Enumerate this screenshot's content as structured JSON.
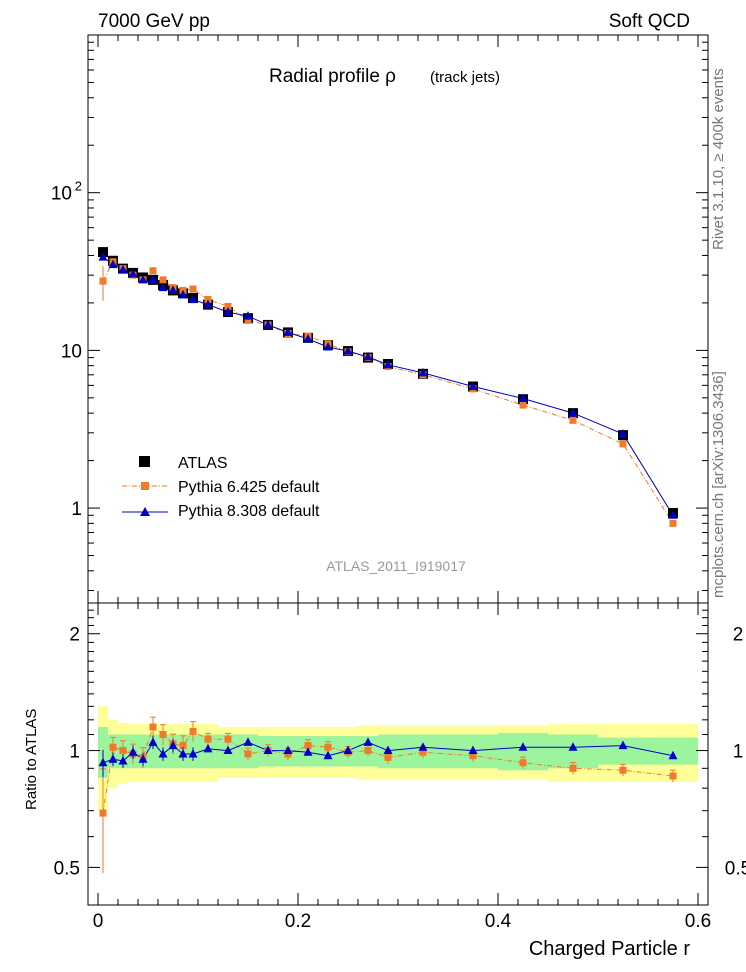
{
  "header": {
    "left": "7000 GeV pp",
    "right": "Soft QCD"
  },
  "side": {
    "rivet": "Rivet 3.1.10, ≥ 400k events",
    "mcplots": "mcplots.cern.ch [arXiv:1306.3436]"
  },
  "chart_data": {
    "type": "line",
    "title": "Radial profile  ρ",
    "title_suffix": "(track jets)",
    "watermark": "ATLAS_2011_I919017",
    "xlabel": "Charged Particle r",
    "ylabel_ratio": "Ratio to ATLAS",
    "xlim": [
      -0.01,
      0.61
    ],
    "ylim_main": [
      0.25,
      1000
    ],
    "yscale_main": "log",
    "ylim_ratio": [
      0.4,
      2.4
    ],
    "yscale_ratio": "log",
    "main_yticks": [
      {
        "v": 1,
        "label": "1"
      },
      {
        "v": 10,
        "label": "10"
      },
      {
        "v": 100,
        "label": "10",
        "sup": "2"
      }
    ],
    "ratio_yticks": [
      {
        "v": 0.5,
        "label": "0.5"
      },
      {
        "v": 1,
        "label": "1"
      },
      {
        "v": 2,
        "label": "2"
      }
    ],
    "xticks": [
      {
        "v": 0,
        "label": "0"
      },
      {
        "v": 0.2,
        "label": "0.2"
      },
      {
        "v": 0.4,
        "label": "0.4"
      },
      {
        "v": 0.6,
        "label": "0.6"
      }
    ],
    "legend_position": "bottom-left",
    "colors": {
      "atlas": "#000000",
      "pythia6": "#f07a2a",
      "pythia8": "#0000cc",
      "band_inner": "#9cf59c",
      "band_outer": "#ffff99"
    },
    "x": [
      0.005,
      0.015,
      0.025,
      0.035,
      0.045,
      0.055,
      0.065,
      0.075,
      0.085,
      0.095,
      0.11,
      0.13,
      0.15,
      0.17,
      0.19,
      0.21,
      0.23,
      0.25,
      0.27,
      0.29,
      0.325,
      0.375,
      0.425,
      0.475,
      0.525,
      0.575
    ],
    "series": [
      {
        "name": "ATLAS",
        "values": [
          42,
          37,
          33,
          31,
          29,
          28,
          26,
          24,
          23,
          21.5,
          19.5,
          17.5,
          16,
          14.5,
          13,
          12,
          10.8,
          9.9,
          9.0,
          8.2,
          7.1,
          5.9,
          4.9,
          4.0,
          2.9,
          0.93
        ],
        "band_inner": [
          0.15,
          0.1,
          0.1,
          0.1,
          0.1,
          0.1,
          0.1,
          0.1,
          0.1,
          0.1,
          0.1,
          0.1,
          0.1,
          0.09,
          0.09,
          0.09,
          0.09,
          0.09,
          0.09,
          0.1,
          0.1,
          0.1,
          0.11,
          0.1,
          0.08,
          0.08
        ],
        "band_outer": [
          0.3,
          0.2,
          0.18,
          0.17,
          0.17,
          0.17,
          0.17,
          0.17,
          0.17,
          0.17,
          0.17,
          0.15,
          0.15,
          0.15,
          0.15,
          0.15,
          0.15,
          0.15,
          0.16,
          0.16,
          0.16,
          0.16,
          0.16,
          0.17,
          0.17,
          0.17
        ]
      },
      {
        "name": "Pythia 6.425 default",
        "values": [
          27.5,
          36.5,
          33,
          30,
          28,
          32,
          28,
          25,
          24,
          24.5,
          21,
          19,
          15.5,
          14.5,
          12.8,
          12.3,
          11,
          9.8,
          9.0,
          7.9,
          7.0,
          5.7,
          4.5,
          3.6,
          2.55,
          0.8
        ],
        "ratio": [
          0.69,
          1.02,
          1.0,
          0.98,
          0.96,
          1.15,
          1.1,
          1.04,
          1.03,
          1.12,
          1.07,
          1.07,
          0.98,
          1.0,
          0.98,
          1.03,
          1.02,
          0.99,
          1.0,
          0.96,
          0.99,
          0.97,
          0.93,
          0.9,
          0.89,
          0.86
        ]
      },
      {
        "name": "Pythia 8.308 default",
        "values": [
          39,
          35,
          32.5,
          30.5,
          28,
          28,
          25,
          24,
          22.5,
          21,
          19.5,
          17.5,
          16.5,
          14.5,
          13,
          11.8,
          10.5,
          9.9,
          9.1,
          8.1,
          7.2,
          5.9,
          4.95,
          4.0,
          2.95,
          0.9
        ],
        "ratio": [
          0.93,
          0.95,
          0.94,
          0.99,
          0.95,
          1.05,
          0.98,
          1.03,
          0.98,
          0.98,
          1.01,
          1.0,
          1.05,
          1.0,
          1.0,
          0.99,
          0.97,
          1.0,
          1.05,
          1.0,
          1.02,
          1.0,
          1.02,
          1.02,
          1.03,
          0.97
        ]
      }
    ]
  }
}
